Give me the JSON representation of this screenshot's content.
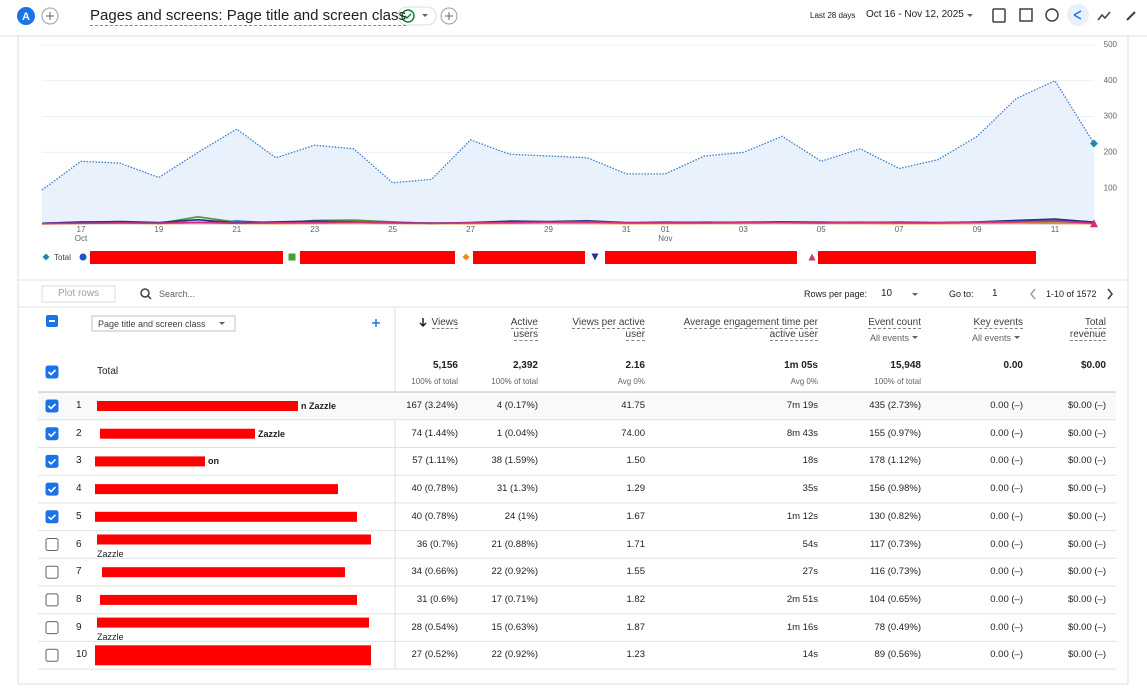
{
  "header": {
    "avatar": "A",
    "title": "Pages and screens: Page title and screen class",
    "date_range_label": "Last 28 days",
    "date_range": "Oct 16 - Nov 12, 2025"
  },
  "chart_data": {
    "type": "line",
    "categories": [
      null,
      "17",
      null,
      "19",
      null,
      "21",
      null,
      "23",
      null,
      "25",
      null,
      "27",
      null,
      "29",
      null,
      "31",
      "01",
      null,
      "03",
      null,
      "05",
      null,
      "07",
      null,
      "09",
      null,
      "11",
      null
    ],
    "category_months": [
      null,
      "Oct",
      null,
      null,
      null,
      null,
      null,
      null,
      null,
      null,
      null,
      null,
      null,
      null,
      null,
      null,
      "Nov",
      null,
      null,
      null,
      null,
      null,
      null,
      null,
      null,
      null,
      null,
      null
    ],
    "ylim": [
      0,
      500
    ],
    "yticks": [
      100,
      200,
      300,
      400,
      500
    ],
    "grid": true,
    "y_axis_side": "right",
    "series": [
      {
        "name": "Total",
        "color": "#3d7cc9",
        "marker": "diamond",
        "marker_color": "#1e88b5",
        "dotted": true,
        "area": true,
        "values": [
          95,
          175,
          170,
          130,
          200,
          265,
          185,
          220,
          210,
          115,
          125,
          235,
          195,
          190,
          185,
          140,
          140,
          190,
          200,
          245,
          175,
          210,
          155,
          180,
          245,
          350,
          400,
          225
        ]
      },
      {
        "color": "#1a56c4",
        "marker": "circle",
        "values": [
          2,
          6,
          5,
          3,
          4,
          8,
          3,
          5,
          6,
          4,
          3,
          2,
          7,
          5,
          4,
          3,
          3,
          5,
          4,
          6,
          4,
          5,
          4,
          3,
          5,
          8,
          10,
          6
        ]
      },
      {
        "color": "#4c9a3a",
        "marker": "square",
        "values": [
          1,
          3,
          4,
          2,
          20,
          5,
          2,
          10,
          11,
          6,
          2,
          3,
          5,
          4,
          6,
          2,
          3,
          3,
          2,
          4,
          3,
          3,
          4,
          3,
          3,
          4,
          3,
          2
        ]
      },
      {
        "color": "#f08a1c",
        "marker": "diamond",
        "values": [
          0,
          2,
          3,
          1,
          3,
          2,
          1,
          2,
          3,
          2,
          1,
          1,
          2,
          3,
          2,
          1,
          1,
          2,
          2,
          3,
          2,
          2,
          1,
          1,
          2,
          3,
          2,
          1
        ]
      },
      {
        "color": "#24318f",
        "marker": "triangle-down",
        "values": [
          2,
          5,
          7,
          4,
          12,
          3,
          6,
          8,
          6,
          4,
          2,
          4,
          8,
          7,
          9,
          4,
          5,
          4,
          5,
          6,
          5,
          4,
          5,
          4,
          6,
          10,
          14,
          5
        ]
      },
      {
        "color": "#d6317a",
        "marker": "triangle",
        "values": [
          1,
          2,
          3,
          2,
          5,
          2,
          3,
          4,
          5,
          3,
          2,
          3,
          4,
          5,
          6,
          3,
          3,
          3,
          4,
          4,
          3,
          4,
          3,
          3,
          5,
          6,
          8,
          2
        ]
      }
    ]
  },
  "table_toolbar": {
    "plot_rows": "Plot rows",
    "search_placeholder": "Search...",
    "rows_per_page_label": "Rows per page:",
    "rows_per_page": "10",
    "go_to_label": "Go to:",
    "go_to": "1",
    "pagination": "1-10 of 1572"
  },
  "table": {
    "dimension": "Page title and screen class",
    "columns": [
      {
        "label": "Views",
        "sorted": true
      },
      {
        "label": "Active users"
      },
      {
        "label": "Views per active user"
      },
      {
        "label": "Average engagement time per active user"
      },
      {
        "label": "Event count",
        "filter": "All events"
      },
      {
        "label": "Key events",
        "filter": "All events"
      },
      {
        "label": "Total revenue"
      }
    ],
    "total": {
      "label": "Total",
      "checked": true,
      "cells": [
        {
          "value": "5,156",
          "sub": "100% of total"
        },
        {
          "value": "2,392",
          "sub": "100% of total"
        },
        {
          "value": "2.16",
          "sub": "Avg 0%"
        },
        {
          "value": "1m 05s",
          "sub": "Avg 0%"
        },
        {
          "value": "15,948",
          "sub": "100% of total"
        },
        {
          "value": "0.00"
        },
        {
          "value": "$0.00"
        }
      ]
    },
    "rows": [
      {
        "index": 1,
        "title": "n Zazzle",
        "checked": true,
        "cells": [
          "167 (3.24%)",
          "4 (0.17%)",
          "41.75",
          "7m 19s",
          "435 (2.73%)",
          "0.00 (–)",
          "$0.00 (–)"
        ]
      },
      {
        "index": 2,
        "title": "Zazzle",
        "checked": true,
        "cells": [
          "74 (1.44%)",
          "1 (0.04%)",
          "74.00",
          "8m 43s",
          "155 (0.97%)",
          "0.00 (–)",
          "$0.00 (–)"
        ]
      },
      {
        "index": 3,
        "title": "on",
        "checked": true,
        "cells": [
          "57 (1.11%)",
          "38 (1.59%)",
          "1.50",
          "18s",
          "178 (1.12%)",
          "0.00 (–)",
          "$0.00 (–)"
        ]
      },
      {
        "index": 4,
        "title": null,
        "checked": true,
        "cells": [
          "40 (0.78%)",
          "31 (1.3%)",
          "1.29",
          "35s",
          "156 (0.98%)",
          "0.00 (–)",
          "$0.00 (–)"
        ]
      },
      {
        "index": 5,
        "title": null,
        "checked": true,
        "cells": [
          "40 (0.78%)",
          "24 (1%)",
          "1.67",
          "1m 12s",
          "130 (0.82%)",
          "0.00 (–)",
          "$0.00 (–)"
        ]
      },
      {
        "index": 6,
        "title": "Zazzle",
        "checked": false,
        "cells": [
          "36 (0.7%)",
          "21 (0.88%)",
          "1.71",
          "54s",
          "117 (0.73%)",
          "0.00 (–)",
          "$0.00 (–)"
        ]
      },
      {
        "index": 7,
        "title": null,
        "checked": false,
        "cells": [
          "34 (0.66%)",
          "22 (0.92%)",
          "1.55",
          "27s",
          "116 (0.73%)",
          "0.00 (–)",
          "$0.00 (–)"
        ]
      },
      {
        "index": 8,
        "title": null,
        "checked": false,
        "cells": [
          "31 (0.6%)",
          "17 (0.71%)",
          "1.82",
          "2m 51s",
          "104 (0.65%)",
          "0.00 (–)",
          "$0.00 (–)"
        ]
      },
      {
        "index": 9,
        "title": "Zazzle",
        "checked": false,
        "cells": [
          "28 (0.54%)",
          "15 (0.63%)",
          "1.87",
          "1m 16s",
          "78 (0.49%)",
          "0.00 (–)",
          "$0.00 (–)"
        ]
      },
      {
        "index": 10,
        "title": null,
        "checked": false,
        "cells": [
          "27 (0.52%)",
          "22 (0.92%)",
          "1.23",
          "14s",
          "89 (0.56%)",
          "0.00 (–)",
          "$0.00 (–)"
        ]
      }
    ]
  }
}
